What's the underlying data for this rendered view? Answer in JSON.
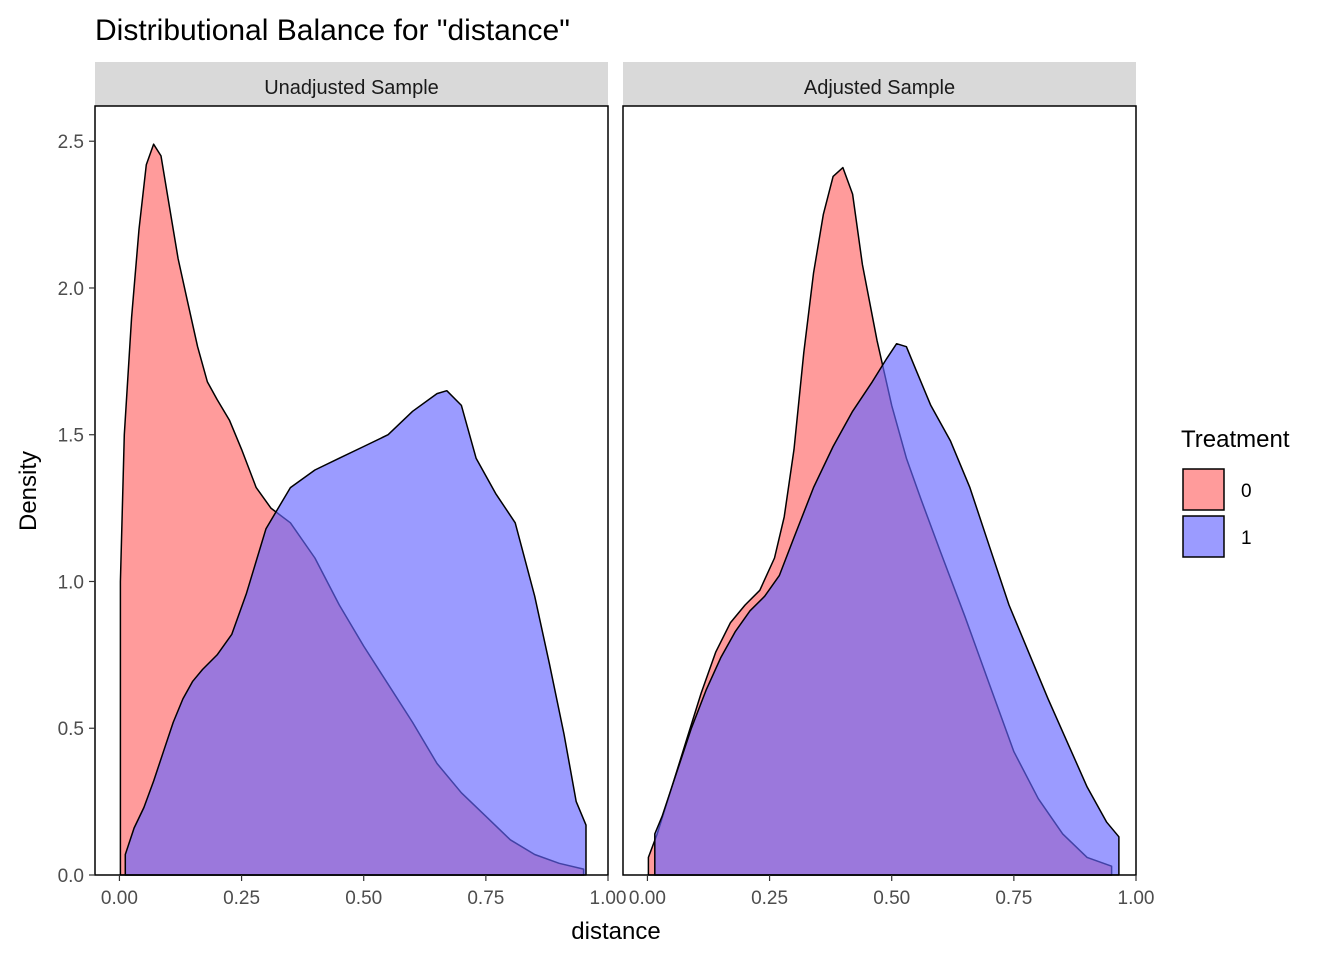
{
  "chart_data": {
    "type": "area",
    "title": "Distributional Balance for \"distance\"",
    "xlabel": "distance",
    "ylabel": "Density",
    "legend": {
      "title": "Treatment",
      "position": "right"
    },
    "colors": {
      "0": "#ff6666",
      "1": "#6666ff",
      "outline": "#000000",
      "strip": "#d9d9d9"
    },
    "fill_alpha": 0.65,
    "panels": [
      {
        "title": "Unadjusted Sample",
        "xlim": [
          -0.05,
          1.0
        ],
        "ylim": [
          0,
          2.62
        ],
        "xticks": [
          0.0,
          0.25,
          0.5,
          0.75,
          1.0
        ],
        "xtick_labels": [
          "0.00",
          "0.25",
          "0.50",
          "0.75",
          "1.00"
        ],
        "series": [
          {
            "name": "0",
            "x": [
              0.002,
              0.01,
              0.025,
              0.04,
              0.055,
              0.07,
              0.085,
              0.1,
              0.12,
              0.14,
              0.16,
              0.18,
              0.2,
              0.225,
              0.25,
              0.28,
              0.31,
              0.35,
              0.4,
              0.45,
              0.5,
              0.55,
              0.6,
              0.65,
              0.7,
              0.75,
              0.8,
              0.85,
              0.9,
              0.95
            ],
            "y": [
              1.0,
              1.5,
              1.9,
              2.2,
              2.42,
              2.49,
              2.45,
              2.3,
              2.1,
              1.95,
              1.8,
              1.68,
              1.62,
              1.55,
              1.45,
              1.32,
              1.25,
              1.2,
              1.08,
              0.92,
              0.78,
              0.65,
              0.52,
              0.38,
              0.28,
              0.2,
              0.12,
              0.07,
              0.04,
              0.02
            ]
          },
          {
            "name": "1",
            "x": [
              0.012,
              0.03,
              0.05,
              0.07,
              0.09,
              0.11,
              0.13,
              0.15,
              0.17,
              0.2,
              0.23,
              0.26,
              0.3,
              0.35,
              0.4,
              0.45,
              0.5,
              0.55,
              0.6,
              0.65,
              0.67,
              0.7,
              0.73,
              0.77,
              0.81,
              0.85,
              0.88,
              0.91,
              0.935,
              0.955
            ],
            "y": [
              0.07,
              0.16,
              0.23,
              0.32,
              0.42,
              0.52,
              0.6,
              0.66,
              0.7,
              0.75,
              0.82,
              0.96,
              1.18,
              1.32,
              1.38,
              1.42,
              1.46,
              1.5,
              1.58,
              1.64,
              1.65,
              1.6,
              1.42,
              1.3,
              1.2,
              0.95,
              0.72,
              0.48,
              0.25,
              0.17
            ]
          }
        ]
      },
      {
        "title": "Adjusted Sample",
        "xlim": [
          -0.05,
          1.0
        ],
        "ylim": [
          0,
          2.62
        ],
        "xticks": [
          0.0,
          0.25,
          0.5,
          0.75,
          1.0
        ],
        "xtick_labels": [
          "0.00",
          "0.25",
          "0.50",
          "0.75",
          "1.00"
        ],
        "series": [
          {
            "name": "0",
            "x": [
              0.002,
              0.02,
              0.05,
              0.08,
              0.11,
              0.14,
              0.17,
              0.2,
              0.23,
              0.26,
              0.28,
              0.3,
              0.32,
              0.34,
              0.36,
              0.38,
              0.4,
              0.42,
              0.44,
              0.47,
              0.5,
              0.53,
              0.56,
              0.6,
              0.65,
              0.7,
              0.75,
              0.8,
              0.85,
              0.9,
              0.95
            ],
            "y": [
              0.06,
              0.14,
              0.3,
              0.46,
              0.62,
              0.76,
              0.86,
              0.92,
              0.97,
              1.08,
              1.22,
              1.45,
              1.78,
              2.05,
              2.25,
              2.38,
              2.41,
              2.32,
              2.08,
              1.82,
              1.6,
              1.42,
              1.28,
              1.1,
              0.88,
              0.65,
              0.42,
              0.26,
              0.14,
              0.06,
              0.03
            ]
          },
          {
            "name": "1",
            "x": [
              0.015,
              0.03,
              0.06,
              0.09,
              0.12,
              0.15,
              0.18,
              0.21,
              0.24,
              0.27,
              0.3,
              0.34,
              0.38,
              0.42,
              0.46,
              0.49,
              0.51,
              0.53,
              0.55,
              0.58,
              0.62,
              0.66,
              0.7,
              0.74,
              0.78,
              0.82,
              0.86,
              0.9,
              0.94,
              0.965
            ],
            "y": [
              0.14,
              0.2,
              0.35,
              0.5,
              0.63,
              0.74,
              0.83,
              0.9,
              0.95,
              1.02,
              1.15,
              1.32,
              1.46,
              1.58,
              1.68,
              1.76,
              1.81,
              1.8,
              1.72,
              1.6,
              1.48,
              1.32,
              1.12,
              0.92,
              0.76,
              0.6,
              0.45,
              0.3,
              0.18,
              0.13
            ]
          }
        ]
      }
    ],
    "yticks": [
      0.0,
      0.5,
      1.0,
      1.5,
      2.0,
      2.5
    ],
    "ytick_labels": [
      "0.0",
      "0.5",
      "1.0",
      "1.5",
      "2.0",
      "2.5"
    ]
  }
}
